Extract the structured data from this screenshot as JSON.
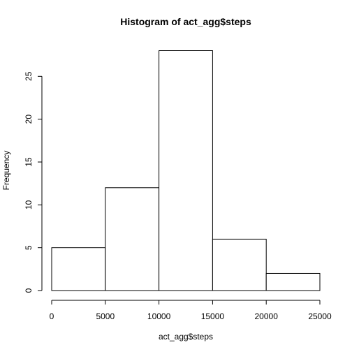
{
  "chart_data": {
    "type": "bar",
    "subtype": "histogram",
    "title": "Histogram of act_agg$steps",
    "xlabel": "act_agg$steps",
    "ylabel": "Frequency",
    "bins": [
      {
        "start": 0,
        "end": 5000,
        "count": 5
      },
      {
        "start": 5000,
        "end": 10000,
        "count": 12
      },
      {
        "start": 10000,
        "end": 15000,
        "count": 28
      },
      {
        "start": 15000,
        "end": 20000,
        "count": 6
      },
      {
        "start": 20000,
        "end": 25000,
        "count": 2
      }
    ],
    "xlim": [
      0,
      25000
    ],
    "ylim": [
      0,
      28
    ],
    "xticks": [
      0,
      5000,
      10000,
      15000,
      20000,
      25000
    ],
    "yticks": [
      0,
      5,
      10,
      15,
      20,
      25
    ],
    "bar_fill": "#ffffff",
    "bar_stroke": "#000000",
    "grid": false,
    "legend": "none"
  }
}
